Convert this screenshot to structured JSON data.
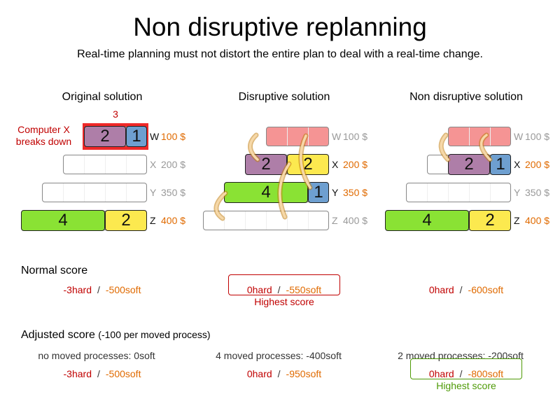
{
  "title": "Non disruptive replanning",
  "subtitle": "Real-time planning must not distort the entire plan to deal with a real-time change.",
  "colors": {
    "purple": "#ae7ea8",
    "blue": "#6e9fd0",
    "green": "#8ae234",
    "yellow": "#fce94f",
    "broken": "#f59494",
    "hard": "#c00000",
    "soft": "#e06a00",
    "good": "#4e9a06",
    "arrow": "#e9b96e"
  },
  "annotation": {
    "overload": "3",
    "note_line1": "Computer X",
    "note_line2": "breaks down"
  },
  "columns": [
    {
      "title": "Original solution",
      "computers": [
        {
          "name": "W",
          "price": "100 $",
          "capacity": 3,
          "state": "used",
          "processes": [
            {
              "label": "2",
              "color": "purple"
            },
            {
              "label": "1",
              "color": "blue"
            }
          ]
        },
        {
          "name": "X",
          "price": "200 $",
          "capacity": 4,
          "state": "empty",
          "processes": []
        },
        {
          "name": "Y",
          "price": "350 $",
          "capacity": 5,
          "state": "empty",
          "processes": []
        },
        {
          "name": "Z",
          "price": "400 $",
          "capacity": 6,
          "state": "used",
          "processes": [
            {
              "label": "4",
              "color": "green"
            },
            {
              "label": "2",
              "color": "yellow"
            }
          ]
        }
      ],
      "normal": {
        "hard": "-3hard",
        "soft": "-500soft"
      },
      "moved": "no moved processes: 0soft",
      "adjusted": {
        "hard": "-3hard",
        "soft": "-500soft"
      }
    },
    {
      "title": "Disruptive solution",
      "computers": [
        {
          "name": "W",
          "price": "100 $",
          "capacity": 3,
          "state": "broken",
          "processes": []
        },
        {
          "name": "X",
          "price": "200 $",
          "capacity": 4,
          "state": "used",
          "processes": [
            {
              "label": "2",
              "color": "purple"
            },
            {
              "label": "2",
              "color": "yellow"
            }
          ]
        },
        {
          "name": "Y",
          "price": "350 $",
          "capacity": 5,
          "state": "used",
          "processes": [
            {
              "label": "4",
              "color": "green"
            },
            {
              "label": "1",
              "color": "blue"
            }
          ]
        },
        {
          "name": "Z",
          "price": "400 $",
          "capacity": 6,
          "state": "empty",
          "processes": []
        }
      ],
      "normal": {
        "hard": "0hard",
        "soft": "-550soft",
        "highlight": "Highest score"
      },
      "moved": "4 moved processes: -400soft",
      "adjusted": {
        "hard": "0hard",
        "soft": "-950soft"
      }
    },
    {
      "title": "Non disruptive solution",
      "computers": [
        {
          "name": "W",
          "price": "100 $",
          "capacity": 3,
          "state": "broken",
          "processes": []
        },
        {
          "name": "X",
          "price": "200 $",
          "capacity": 4,
          "state": "used",
          "processes": [
            {
              "label": "2",
              "color": "purple"
            },
            {
              "label": "1",
              "color": "blue"
            }
          ]
        },
        {
          "name": "Y",
          "price": "350 $",
          "capacity": 5,
          "state": "empty",
          "processes": []
        },
        {
          "name": "Z",
          "price": "400 $",
          "capacity": 6,
          "state": "used",
          "processes": [
            {
              "label": "4",
              "color": "green"
            },
            {
              "label": "2",
              "color": "yellow"
            }
          ]
        }
      ],
      "normal": {
        "hard": "0hard",
        "soft": "-600soft"
      },
      "moved": "2 moved processes: -200soft",
      "adjusted": {
        "hard": "0hard",
        "soft": "-800soft",
        "highlight": "Highest score"
      }
    }
  ],
  "normal_score_label": "Normal score",
  "adjusted_score_label": "Adjusted score",
  "adjusted_score_note": "(-100 per moved process)",
  "score_separator": "/"
}
